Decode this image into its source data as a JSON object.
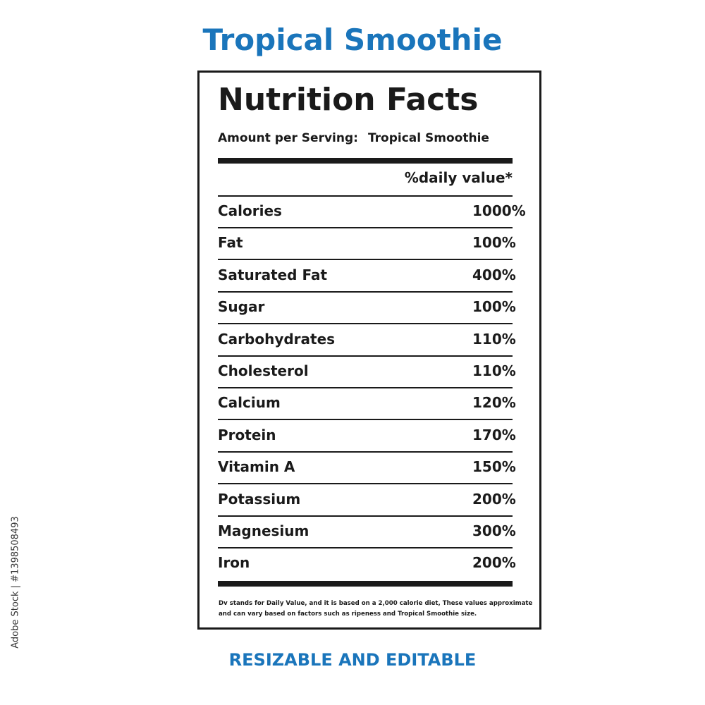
{
  "title": "Tropical Smoothie",
  "label": {
    "heading": "Nutrition Facts",
    "serving_label": "Amount per Serving:",
    "serving_value": "Tropical Smoothie",
    "dv_header": "%daily value*",
    "rows": [
      [
        "Calories",
        "1000%"
      ],
      [
        "Fat",
        "100%"
      ],
      [
        "Saturated Fat",
        "400%"
      ],
      [
        "Sugar",
        "100%"
      ],
      [
        "Carbohydrates",
        "110%"
      ],
      [
        "Cholesterol",
        "110%"
      ],
      [
        "Calcium",
        "120%"
      ],
      [
        "Protein",
        "170%"
      ],
      [
        "Vitamin A",
        "150%"
      ],
      [
        "Potassium",
        "200%"
      ],
      [
        "Magnesium",
        "300%"
      ],
      [
        "Iron",
        "200%"
      ]
    ],
    "footnote": [
      "Dv stands for Daily Value, and it is based on a 2,000 calorie diet, These values approximate",
      "and can vary based on factors such as ripeness and Tropical Smoothie size."
    ]
  },
  "footer": "RESIZABLE AND EDITABLE",
  "watermark": "Adobe Stock | #1398508493"
}
